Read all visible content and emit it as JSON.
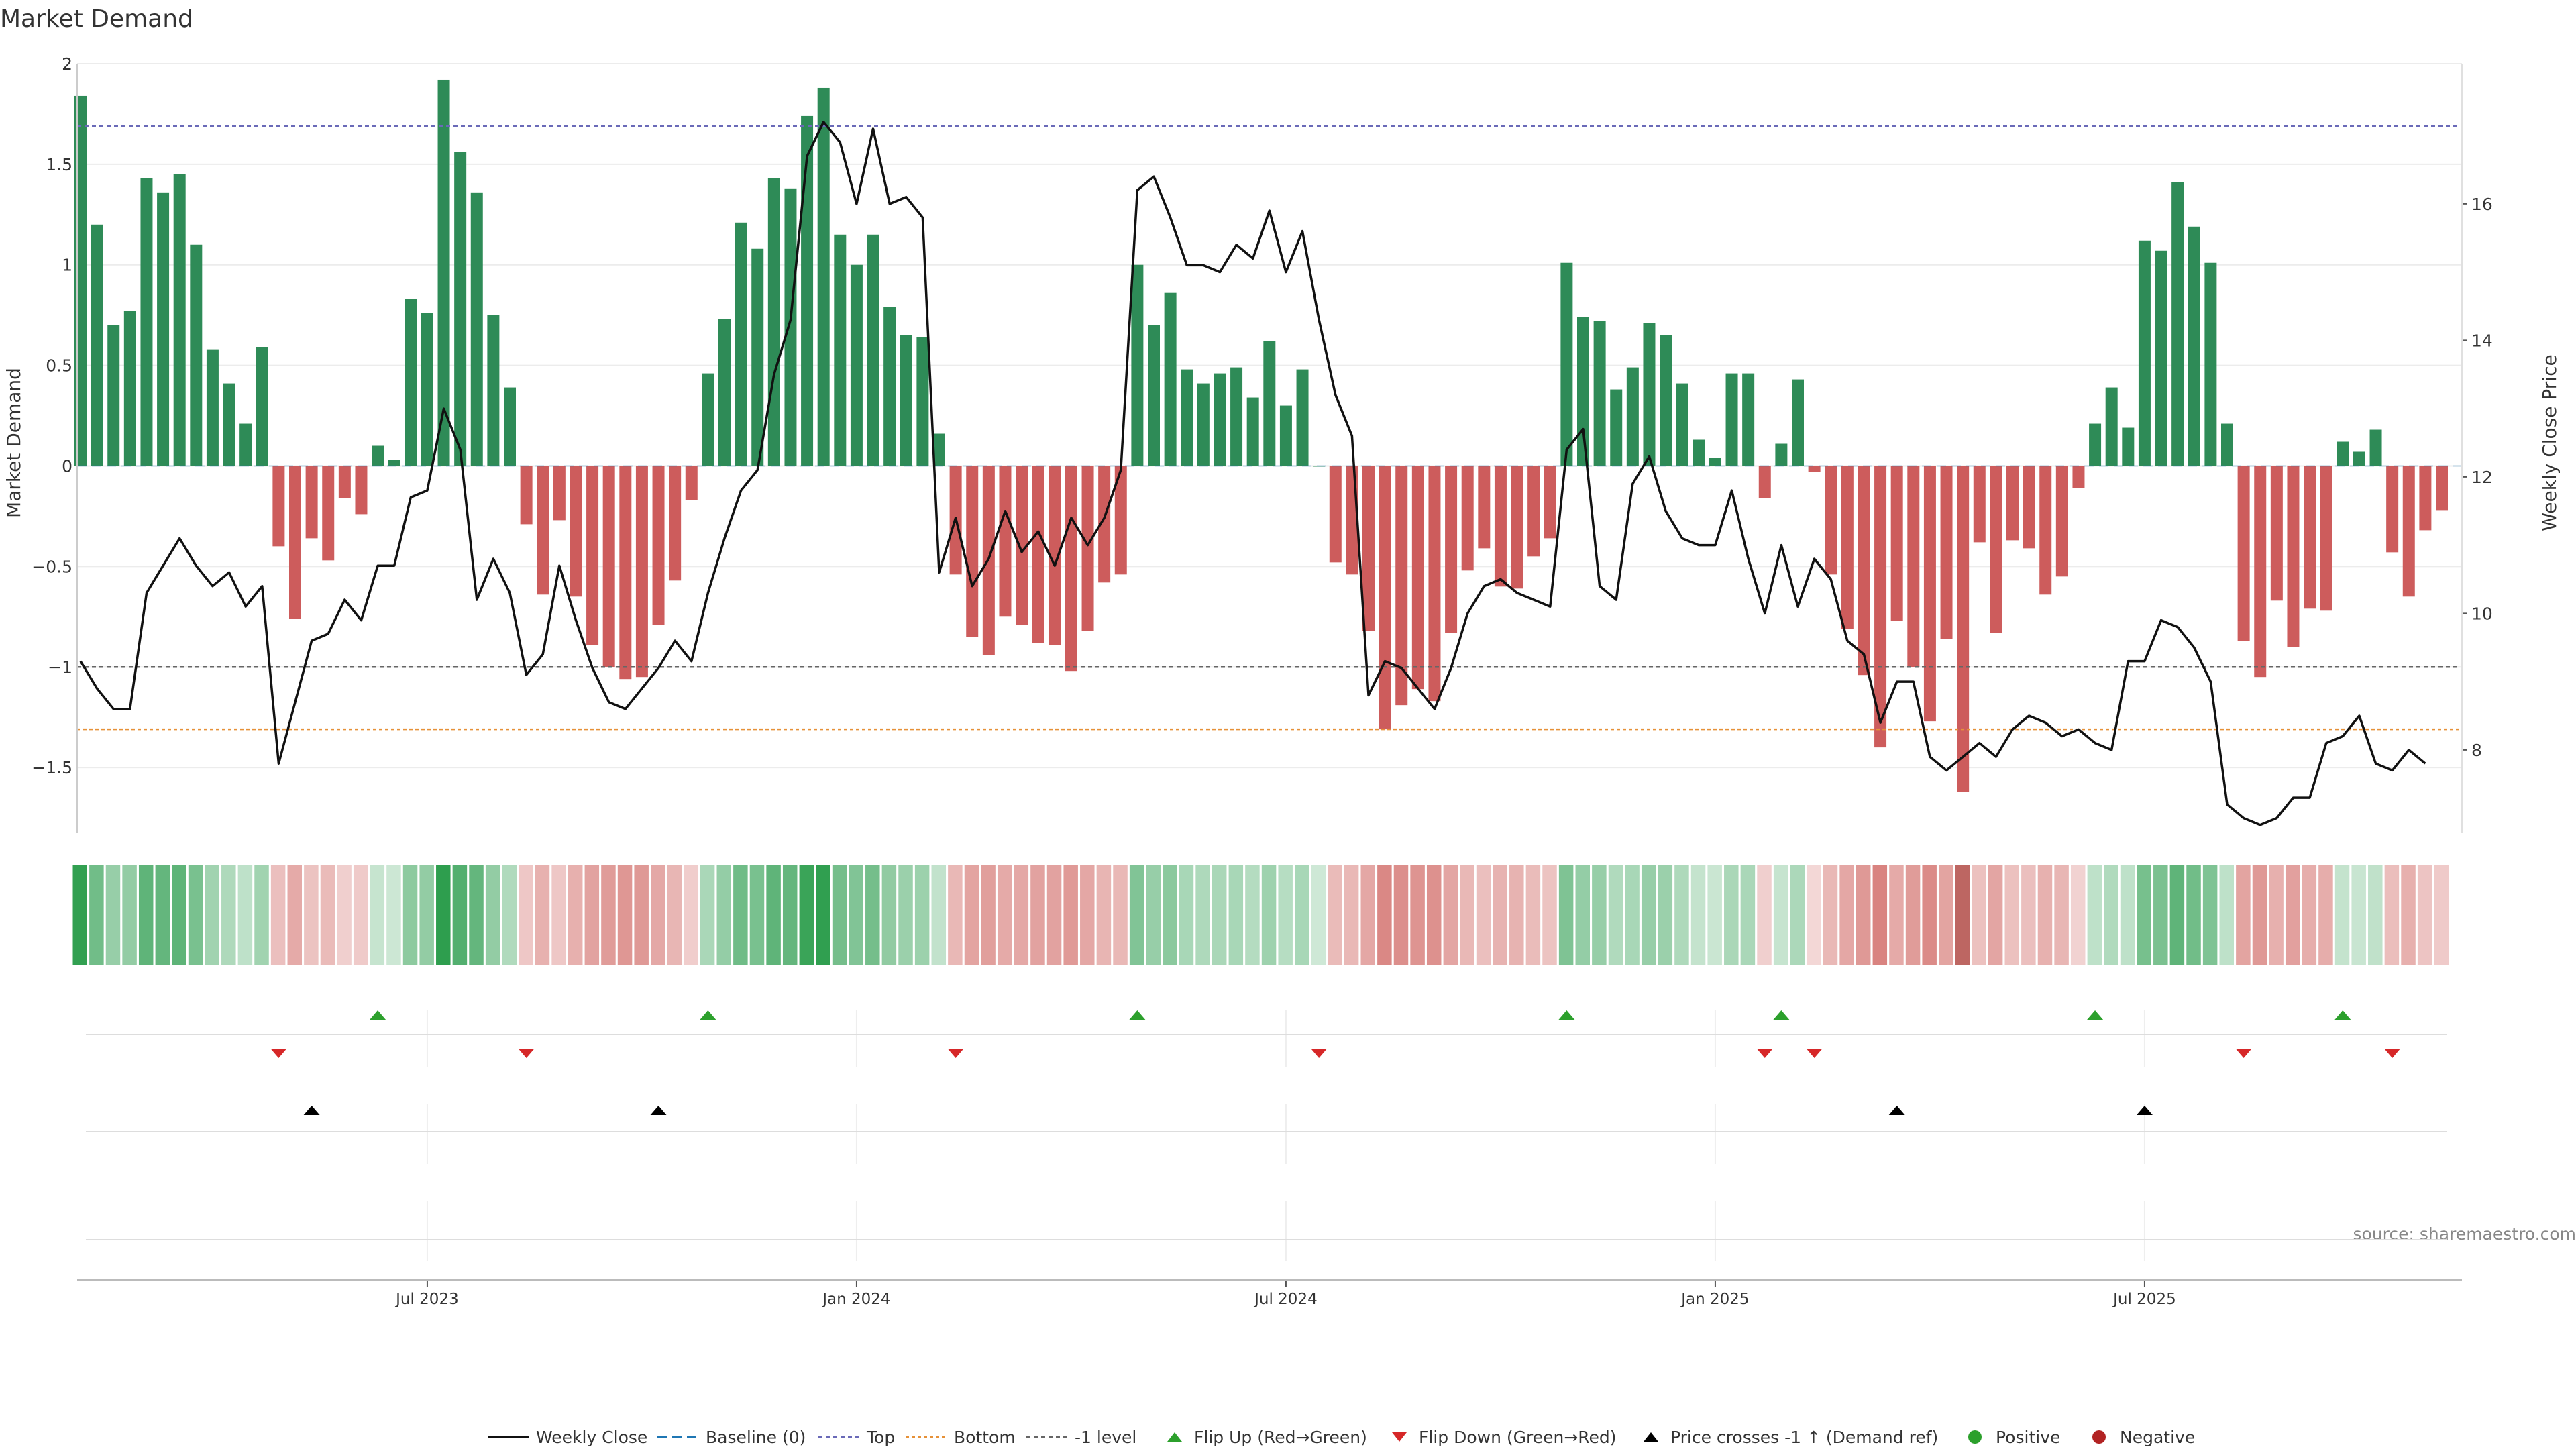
{
  "chart_data": {
    "type": "bar",
    "title": "Market Demand",
    "ylabel": "Market Demand",
    "y2label": "Weekly Close Price",
    "ylim": [
      -1.82,
      2.05
    ],
    "y2lim": [
      6.8,
      18.2
    ],
    "yticks": [
      2,
      1.5,
      1,
      0.5,
      0,
      -0.5,
      -1,
      -1.5
    ],
    "yticklabels": [
      "2",
      "1.5",
      "1",
      "0.5",
      "0",
      "−0.5",
      "−1",
      "−1.5"
    ],
    "y2ticks": [
      16,
      14,
      12,
      10,
      8
    ],
    "y2ticklabels": [
      "16",
      "14",
      "12",
      "10",
      "8"
    ],
    "xticks": [
      {
        "week": 21,
        "label": "Jul 2023"
      },
      {
        "week": 47,
        "label": "Jan 2024"
      },
      {
        "week": 73,
        "label": "Jul 2024"
      },
      {
        "week": 99,
        "label": "Jan 2025"
      },
      {
        "week": 125,
        "label": "Jul 2025"
      }
    ],
    "reference_lines": {
      "top": 1.69,
      "bottom": -1.31,
      "minus_one": -1.0,
      "baseline": 0
    },
    "demand": [
      1.84,
      1.2,
      0.7,
      0.77,
      1.43,
      1.36,
      1.45,
      1.1,
      0.58,
      0.41,
      0.21,
      0.59,
      -0.4,
      -0.76,
      -0.36,
      -0.47,
      -0.16,
      -0.24,
      0.1,
      0.03,
      0.83,
      0.76,
      1.92,
      1.56,
      1.36,
      0.75,
      0.39,
      -0.29,
      -0.64,
      -0.27,
      -0.65,
      -0.89,
      -1.0,
      -1.06,
      -1.05,
      -0.79,
      -0.57,
      -0.17,
      0.46,
      0.73,
      1.21,
      1.08,
      1.43,
      1.38,
      1.74,
      1.88,
      1.15,
      1.0,
      1.15,
      0.79,
      0.65,
      0.64,
      0.16,
      -0.54,
      -0.85,
      -0.94,
      -0.75,
      -0.79,
      -0.88,
      -0.89,
      -1.02,
      -0.82,
      -0.58,
      -0.54,
      1.0,
      0.7,
      0.86,
      0.48,
      0.41,
      0.46,
      0.49,
      0.34,
      0.62,
      0.3,
      0.48,
      0.0,
      -0.48,
      -0.54,
      -0.82,
      -1.31,
      -1.19,
      -1.11,
      -1.17,
      -0.83,
      -0.52,
      -0.41,
      -0.6,
      -0.61,
      -0.45,
      -0.36,
      1.01,
      0.74,
      0.72,
      0.38,
      0.49,
      0.71,
      0.65,
      0.41,
      0.13,
      0.04,
      0.46,
      0.46,
      -0.16,
      0.11,
      0.43,
      -0.03,
      -0.54,
      -0.81,
      -1.04,
      -1.4,
      -0.77,
      -1.0,
      -1.27,
      -0.86,
      -1.62,
      -0.38,
      -0.83,
      -0.37,
      -0.41,
      -0.64,
      -0.55,
      -0.11,
      0.21,
      0.39,
      0.19,
      1.12,
      1.07,
      1.41,
      1.19,
      1.01,
      0.21,
      -0.87,
      -1.05,
      -0.67,
      -0.9,
      -0.71,
      -0.72,
      0.12,
      0.07,
      0.18,
      -0.43,
      -0.65,
      -0.32,
      -0.22
    ],
    "price": [
      9.3,
      8.9,
      8.6,
      8.6,
      10.3,
      10.7,
      11.1,
      10.7,
      10.4,
      10.6,
      10.1,
      10.4,
      7.8,
      8.7,
      9.6,
      9.7,
      10.2,
      9.9,
      10.7,
      10.7,
      11.7,
      11.8,
      13.0,
      12.4,
      10.2,
      10.8,
      10.3,
      9.1,
      9.4,
      10.7,
      9.9,
      9.2,
      8.7,
      8.6,
      8.9,
      9.2,
      9.6,
      9.3,
      10.3,
      11.1,
      11.8,
      12.1,
      13.5,
      14.3,
      16.7,
      17.2,
      16.9,
      16.0,
      17.1,
      16.0,
      16.1,
      15.8,
      10.6,
      11.4,
      10.4,
      10.8,
      11.5,
      10.9,
      11.2,
      10.7,
      11.4,
      11.0,
      11.4,
      12.1,
      16.2,
      16.4,
      15.8,
      15.1,
      15.1,
      15.0,
      15.4,
      15.2,
      15.9,
      15.0,
      15.6,
      14.3,
      13.2,
      12.6,
      8.8,
      9.3,
      9.2,
      8.9,
      8.6,
      9.2,
      10.0,
      10.4,
      10.5,
      10.3,
      10.2,
      10.1,
      12.4,
      12.7,
      10.4,
      10.2,
      11.9,
      12.3,
      11.5,
      11.1,
      11.0,
      11.0,
      11.8,
      10.8,
      10.0,
      11.0,
      10.1,
      10.8,
      10.5,
      9.6,
      9.4,
      8.4,
      9.0,
      9.0,
      7.9,
      7.7,
      7.9,
      8.1,
      7.9,
      8.3,
      8.5,
      8.4,
      8.2,
      8.3,
      8.1,
      8.0,
      9.3,
      9.3,
      9.9,
      9.8,
      9.5,
      9.0,
      7.2,
      7.0,
      6.9,
      7.0,
      7.3,
      7.3,
      8.1,
      8.2,
      8.5,
      7.8,
      7.7,
      8.0,
      7.8
    ],
    "flip_up_weeks": [
      18,
      38,
      64,
      90,
      103,
      122,
      137
    ],
    "flip_down_weeks": [
      12,
      27,
      53,
      75,
      102,
      105,
      131,
      140
    ],
    "price_cross_weeks": [
      14,
      35,
      110,
      125
    ],
    "legend_position": "bottom",
    "source": "source: sharemaestro.com"
  },
  "legend": {
    "weekly_close": "Weekly Close",
    "baseline": "Baseline (0)",
    "top": "Top",
    "bottom": "Bottom",
    "minus_one": "-1 level",
    "flip_up": "Flip Up (Red→Green)",
    "flip_down": "Flip Down (Green→Red)",
    "price_cross": "Price crosses -1 ↑ (Demand ref)",
    "positive": "Positive",
    "negative": "Negative"
  },
  "colors": {
    "positive_bar": "#2e8b57",
    "negative_bar": "#cd5c5c",
    "price_line": "#111111",
    "top_line": "#6a6ab8",
    "bottom_line": "#e69138",
    "minus_one_line": "#666666",
    "baseline_line": "#1f77b4",
    "flip_up": "#2ca02c",
    "flip_down": "#d62728",
    "price_cross": "#000000",
    "positive_dot": "#2ca02c",
    "negative_dot": "#b22222"
  }
}
